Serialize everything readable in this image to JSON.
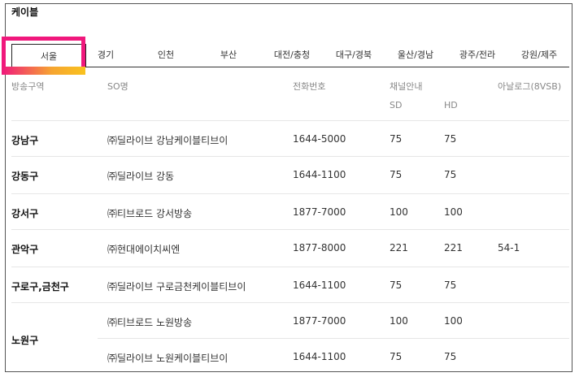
{
  "section_title": "케이블",
  "tabs": [
    "서울",
    "경기",
    "인천",
    "부산",
    "대전/충청",
    "대구/경북",
    "울산/경남",
    "광주/전라",
    "강원/제주"
  ],
  "headers": {
    "area": "방송구역",
    "so": "SO명",
    "phone": "전화번호",
    "channel": "채널안내",
    "sd": "SD",
    "hd": "HD",
    "analog": "아날로그(8VSB)"
  },
  "rows": [
    {
      "area": "강남구",
      "so": "㈜딜라이브 강남케이블티브이",
      "phone": "1644-5000",
      "sd": "75",
      "hd": "75",
      "analog": ""
    },
    {
      "area": "강동구",
      "so": "㈜딜라이브 강동",
      "phone": "1644-1100",
      "sd": "75",
      "hd": "75",
      "analog": ""
    },
    {
      "area": "강서구",
      "so": "㈜티브로드 강서방송",
      "phone": "1877-7000",
      "sd": "100",
      "hd": "100",
      "analog": ""
    },
    {
      "area": "관악구",
      "so": "㈜현대에이치씨엔",
      "phone": "1877-8000",
      "sd": "221",
      "hd": "221",
      "analog": "54-1"
    },
    {
      "area": "구로구,금천구",
      "so": "㈜딜라이브 구로금천케이블티브이",
      "phone": "1644-1100",
      "sd": "75",
      "hd": "75",
      "analog": ""
    },
    {
      "area": "노원구",
      "so": "㈜티브로드 노원방송",
      "phone": "1877-7000",
      "sd": "100",
      "hd": "100",
      "analog": ""
    },
    {
      "area": "",
      "so": "㈜딜라이브 노원케이블티브이",
      "phone": "1644-1100",
      "sd": "75",
      "hd": "75",
      "analog": ""
    }
  ]
}
